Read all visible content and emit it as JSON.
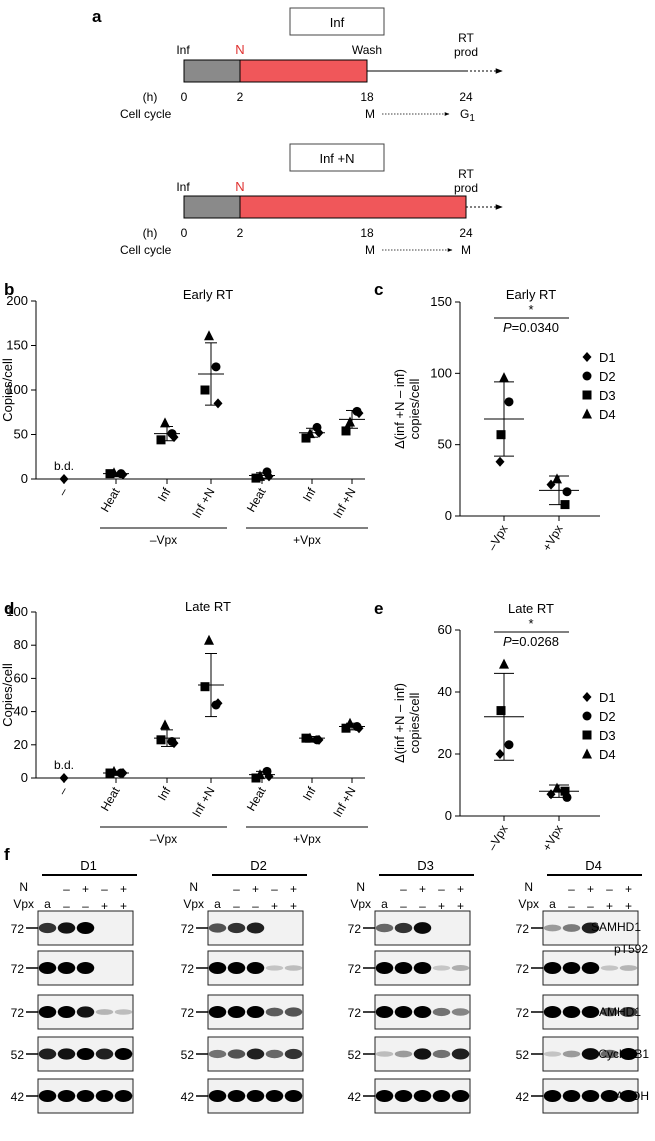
{
  "panels": {
    "a": {
      "letter": "a",
      "timelines": [
        {
          "box_label": "Inf",
          "inf_label": "Inf",
          "n_label": "N",
          "wash_label": "Wash",
          "rt_label": "RT",
          "prod_label": "prod",
          "h_label": "(h)",
          "times": [
            "0",
            "2",
            "18",
            "24"
          ],
          "cell_cycle_label": "Cell cycle",
          "phase_from": "M",
          "phase_to": "G",
          "phase_to_sub": "1"
        },
        {
          "box_label": "Inf +N",
          "inf_label": "Inf",
          "n_label": "N",
          "rt_label": "RT",
          "prod_label": "prod",
          "h_label": "(h)",
          "times": [
            "0",
            "2",
            "18",
            "24"
          ],
          "cell_cycle_label": "Cell cycle",
          "phase_from": "M",
          "phase_to": "M"
        }
      ],
      "colors": {
        "infection": "#8a8a8a",
        "nucleoside": "#f0575a"
      }
    },
    "f": {
      "letter": "f",
      "donors": [
        {
          "name": "D1",
          "bands": [
            [
              0.75,
              0.9,
              1,
              0,
              0
            ],
            [
              1,
              1,
              1,
              0,
              0
            ],
            [
              1,
              1,
              0.9,
              0.12,
              0.08
            ],
            [
              0.85,
              0.9,
              1,
              0.85,
              1
            ],
            [
              1,
              1,
              1,
              1,
              1
            ]
          ]
        },
        {
          "name": "D2",
          "bands": [
            [
              0.6,
              0.75,
              0.85,
              0,
              0
            ],
            [
              1,
              1,
              1,
              0.05,
              0.08
            ],
            [
              1,
              1,
              1,
              0.55,
              0.6
            ],
            [
              0.45,
              0.6,
              0.85,
              0.5,
              0.75
            ],
            [
              1,
              1,
              1,
              1,
              1
            ]
          ]
        },
        {
          "name": "D3",
          "bands": [
            [
              0.5,
              0.75,
              0.95,
              0,
              0
            ],
            [
              1,
              1,
              1,
              0.04,
              0.15
            ],
            [
              1,
              1,
              1,
              0.45,
              0.35
            ],
            [
              0.08,
              0.25,
              0.9,
              0.45,
              0.85
            ],
            [
              1,
              1,
              1,
              1,
              1
            ]
          ]
        },
        {
          "name": "D4",
          "bands": [
            [
              0.25,
              0.4,
              0.85,
              0,
              0
            ],
            [
              1,
              1,
              1,
              0.05,
              0.12
            ],
            [
              1,
              1,
              1,
              0.55,
              0.7
            ],
            [
              0.05,
              0.25,
              0.95,
              0.5,
              1
            ],
            [
              1,
              1,
              1,
              1,
              1
            ]
          ]
        }
      ],
      "n_label": "N",
      "vpx_label": "Vpx",
      "lane_first": "a",
      "n_signs": [
        "–",
        "+",
        "–",
        "+"
      ],
      "vpx_signs": [
        "–",
        "–",
        "+",
        "+"
      ],
      "mw": [
        "72",
        "72",
        "72",
        "52",
        "42"
      ],
      "protein_labels": [
        "SAMHD1",
        "pT592",
        "SAMHD1",
        "Cyclin B1",
        "GAPDH"
      ]
    }
  },
  "chart_data": [
    {
      "panel": "b",
      "type": "scatter",
      "title": "Early RT",
      "ylabel": "Copies/cell",
      "ylim": [
        0,
        200
      ],
      "yticks": [
        "0",
        "50",
        "100",
        "150",
        "200"
      ],
      "categories": [
        "–",
        "Heat",
        "Inf",
        "Inf +N",
        "Heat",
        "Inf",
        "Inf +N"
      ],
      "groups": [
        "–Vpx",
        "+Vpx"
      ],
      "bd_label": "b.d.",
      "markers": {
        "D1": "diamond",
        "D2": "circle",
        "D3": "square",
        "D4": "triangle"
      },
      "series": [
        {
          "name": "D1",
          "values": [
            0,
            5,
            47,
            85,
            3,
            52,
            74
          ]
        },
        {
          "name": "D2",
          "values": [
            null,
            6,
            51,
            126,
            8,
            58,
            76
          ]
        },
        {
          "name": "D3",
          "values": [
            null,
            6,
            44,
            100,
            1,
            46,
            54
          ]
        },
        {
          "name": "D4",
          "values": [
            null,
            7,
            63,
            161,
            3,
            51,
            64
          ]
        }
      ],
      "mean": [
        null,
        6,
        51,
        118,
        4,
        52,
        67
      ],
      "sd": [
        null,
        1,
        8,
        35,
        3,
        5,
        10
      ]
    },
    {
      "panel": "c",
      "type": "scatter",
      "title": "Early RT",
      "stat_star": "*",
      "stat_p_italic": "P",
      "stat_p_value": "=0.0340",
      "ylabel": "Δ(inf +N – inf) copies/cell",
      "ylabel_line1": "Δ(inf +N – inf)",
      "ylabel_line2": "copies/cell",
      "ylim": [
        0,
        150
      ],
      "yticks": [
        "0",
        "50",
        "100",
        "150"
      ],
      "categories": [
        "–Vpx",
        "+Vpx"
      ],
      "series": [
        {
          "name": "D1",
          "values": [
            38,
            22
          ]
        },
        {
          "name": "D2",
          "values": [
            80,
            17
          ]
        },
        {
          "name": "D3",
          "values": [
            57,
            8
          ]
        },
        {
          "name": "D4",
          "values": [
            97,
            26
          ]
        }
      ],
      "mean": [
        68,
        18
      ],
      "sd": [
        26,
        10
      ]
    },
    {
      "panel": "d",
      "type": "scatter",
      "title": "Late RT",
      "ylabel": "Copies/cell",
      "ylim": [
        0,
        100
      ],
      "yticks": [
        "0",
        "20",
        "40",
        "60",
        "80",
        "100"
      ],
      "categories": [
        "–",
        "Heat",
        "Inf",
        "Inf +N",
        "Heat",
        "Inf",
        "Inf +N"
      ],
      "groups": [
        "–Vpx",
        "+Vpx"
      ],
      "bd_label": "b.d.",
      "markers": {
        "D1": "diamond",
        "D2": "circle",
        "D3": "square",
        "D4": "triangle"
      },
      "series": [
        {
          "name": "D1",
          "values": [
            0,
            3,
            21,
            45,
            1,
            23,
            30
          ]
        },
        {
          "name": "D2",
          "values": [
            null,
            3,
            22,
            44,
            4,
            23,
            31
          ]
        },
        {
          "name": "D3",
          "values": [
            null,
            3,
            23,
            55,
            0,
            24,
            30
          ]
        },
        {
          "name": "D4",
          "values": [
            null,
            4,
            32,
            83,
            2,
            24,
            33
          ]
        }
      ],
      "mean": [
        null,
        3,
        24,
        56,
        2,
        24,
        31
      ],
      "sd": [
        null,
        1,
        5,
        19,
        2,
        1,
        2
      ]
    },
    {
      "panel": "e",
      "type": "scatter",
      "title": "Late RT",
      "stat_star": "*",
      "stat_p_italic": "P",
      "stat_p_value": "=0.0268",
      "ylabel": "Δ(inf +N – inf) copies/cell",
      "ylabel_line1": "Δ(inf +N – inf)",
      "ylabel_line2": "copies/cell",
      "ylim": [
        0,
        60
      ],
      "yticks": [
        "0",
        "20",
        "40",
        "60"
      ],
      "categories": [
        "–Vpx",
        "+Vpx"
      ],
      "series": [
        {
          "name": "D1",
          "values": [
            20,
            7
          ]
        },
        {
          "name": "D2",
          "values": [
            23,
            6
          ]
        },
        {
          "name": "D3",
          "values": [
            34,
            8
          ]
        },
        {
          "name": "D4",
          "values": [
            49,
            9
          ]
        }
      ],
      "mean": [
        32,
        8
      ],
      "sd": [
        14,
        2
      ]
    }
  ]
}
